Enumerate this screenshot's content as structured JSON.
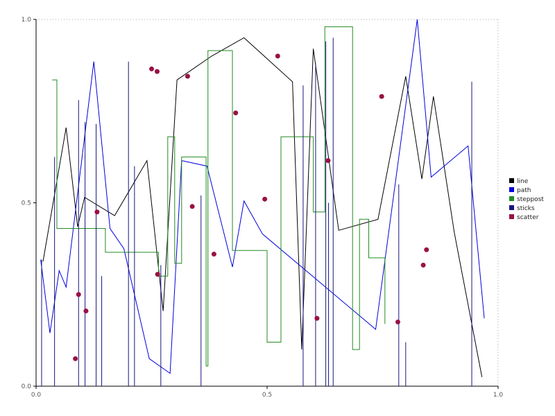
{
  "chart_data": {
    "type": "line",
    "title": "",
    "xlabel": "",
    "ylabel": "",
    "xlim": [
      0,
      1
    ],
    "ylim": [
      0,
      1
    ],
    "x_tick_labels": [
      "0.0",
      "0.5",
      "1.0"
    ],
    "y_tick_labels": [
      "0.0",
      "0.5",
      "1.0"
    ],
    "grid": "dotted frame on top and right edges, solid axes left and bottom",
    "legend_position": "right",
    "tick_label_color": "#555555",
    "axis_color": "#000000",
    "grid_color": "#aaaaaa",
    "series": [
      {
        "name": "line",
        "render": "line",
        "color": "#000000",
        "points": [
          [
            0.015,
            0.34
          ],
          [
            0.065,
            0.705
          ],
          [
            0.09,
            0.435
          ],
          [
            0.105,
            0.515
          ],
          [
            0.17,
            0.465
          ],
          [
            0.24,
            0.615
          ],
          [
            0.275,
            0.205
          ],
          [
            0.305,
            0.835
          ],
          [
            0.38,
            0.9
          ],
          [
            0.45,
            0.95
          ],
          [
            0.555,
            0.83
          ],
          [
            0.575,
            0.1
          ],
          [
            0.6,
            0.92
          ],
          [
            0.655,
            0.425
          ],
          [
            0.74,
            0.455
          ],
          [
            0.8,
            0.845
          ],
          [
            0.835,
            0.565
          ],
          [
            0.86,
            0.79
          ],
          [
            0.905,
            0.42
          ],
          [
            0.965,
            0.025
          ]
        ]
      },
      {
        "name": "path",
        "render": "line",
        "color": "#0000dd",
        "points": [
          [
            0.01,
            0.345
          ],
          [
            0.03,
            0.145
          ],
          [
            0.05,
            0.315
          ],
          [
            0.065,
            0.27
          ],
          [
            0.125,
            0.885
          ],
          [
            0.16,
            0.43
          ],
          [
            0.19,
            0.375
          ],
          [
            0.245,
            0.075
          ],
          [
            0.29,
            0.035
          ],
          [
            0.315,
            0.615
          ],
          [
            0.37,
            0.6
          ],
          [
            0.425,
            0.325
          ],
          [
            0.45,
            0.505
          ],
          [
            0.49,
            0.415
          ],
          [
            0.735,
            0.155
          ],
          [
            0.825,
            1.0
          ],
          [
            0.855,
            0.57
          ],
          [
            0.935,
            0.655
          ],
          [
            0.97,
            0.185
          ]
        ]
      },
      {
        "name": "steppost",
        "render": "step-post",
        "color": "#228B22",
        "points": [
          [
            0.035,
            0.835
          ],
          [
            0.045,
            0.43
          ],
          [
            0.15,
            0.365
          ],
          [
            0.265,
            0.3
          ],
          [
            0.285,
            0.68
          ],
          [
            0.3,
            0.335
          ],
          [
            0.315,
            0.625
          ],
          [
            0.368,
            0.055
          ],
          [
            0.372,
            0.915
          ],
          [
            0.425,
            0.37
          ],
          [
            0.5,
            0.12
          ],
          [
            0.53,
            0.68
          ],
          [
            0.6,
            0.475
          ],
          [
            0.625,
            0.98
          ],
          [
            0.685,
            0.1
          ],
          [
            0.7,
            0.455
          ],
          [
            0.72,
            0.35
          ],
          [
            0.755,
            0.17
          ]
        ]
      },
      {
        "name": "sticks",
        "render": "sticks",
        "color": "#151580",
        "points": [
          [
            0.012,
            0.345
          ],
          [
            0.04,
            0.625
          ],
          [
            0.092,
            0.78
          ],
          [
            0.106,
            0.72
          ],
          [
            0.13,
            0.715
          ],
          [
            0.142,
            0.3
          ],
          [
            0.2,
            0.885
          ],
          [
            0.213,
            0.6
          ],
          [
            0.27,
            0.33
          ],
          [
            0.357,
            0.52
          ],
          [
            0.578,
            0.82
          ],
          [
            0.605,
            0.88
          ],
          [
            0.627,
            0.94
          ],
          [
            0.633,
            0.5
          ],
          [
            0.643,
            0.95
          ],
          [
            0.785,
            0.55
          ],
          [
            0.8,
            0.12
          ],
          [
            0.943,
            0.83
          ]
        ]
      },
      {
        "name": "scatter",
        "render": "scatter",
        "color": "#991144",
        "marker_radius": 3.5,
        "points": [
          [
            0.085,
            0.075
          ],
          [
            0.092,
            0.25
          ],
          [
            0.108,
            0.205
          ],
          [
            0.132,
            0.475
          ],
          [
            0.25,
            0.865
          ],
          [
            0.262,
            0.858
          ],
          [
            0.263,
            0.305
          ],
          [
            0.328,
            0.845
          ],
          [
            0.338,
            0.49
          ],
          [
            0.385,
            0.36
          ],
          [
            0.432,
            0.745
          ],
          [
            0.495,
            0.51
          ],
          [
            0.523,
            0.9
          ],
          [
            0.608,
            0.185
          ],
          [
            0.632,
            0.615
          ],
          [
            0.748,
            0.79
          ],
          [
            0.783,
            0.175
          ],
          [
            0.838,
            0.33
          ],
          [
            0.845,
            0.372
          ]
        ]
      }
    ],
    "legend": {
      "items": [
        {
          "label": "line",
          "color": "#000000"
        },
        {
          "label": "path",
          "color": "#0000dd"
        },
        {
          "label": "steppost",
          "color": "#228B22"
        },
        {
          "label": "sticks",
          "color": "#151580"
        },
        {
          "label": "scatter",
          "color": "#991144"
        }
      ]
    }
  }
}
